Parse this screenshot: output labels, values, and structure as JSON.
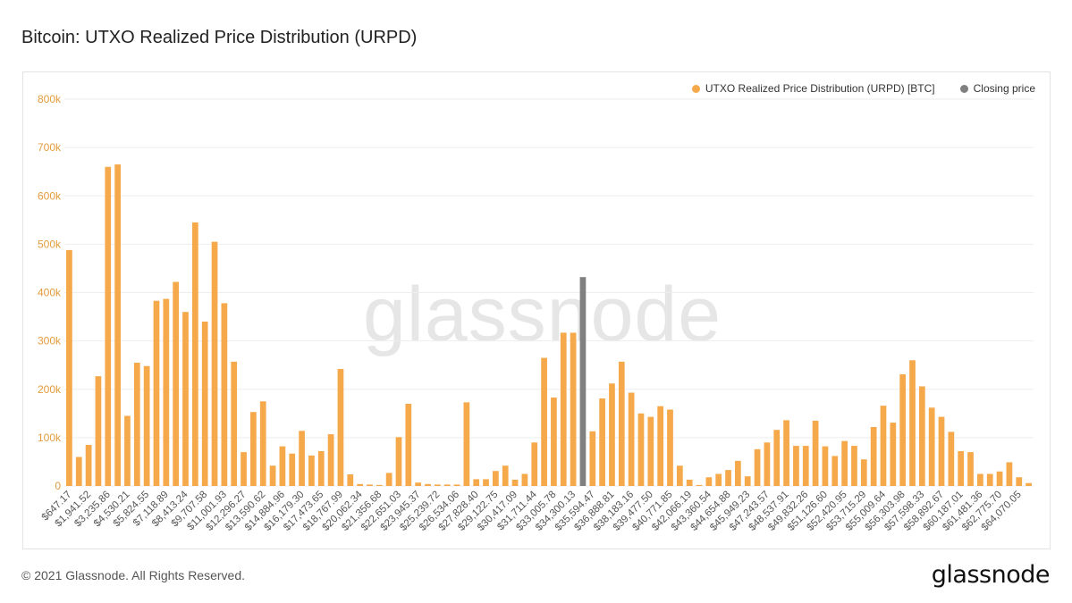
{
  "title": "Bitcoin: UTXO Realized Price Distribution (URPD)",
  "watermark": "glassnode",
  "footer": "© 2021 Glassnode. All Rights Reserved.",
  "brand": "glassnode",
  "colors": {
    "bar": "#f5a94a",
    "closing": "#808080",
    "axis_text": "#e49c3d",
    "grid": "#eeeeee"
  },
  "chart_data": {
    "type": "bar",
    "legend": {
      "placement": "top-right",
      "items": [
        {
          "name": "UTXO Realized Price Distribution (URPD) [BTC]",
          "color": "#f5a94a"
        },
        {
          "name": "Closing price",
          "color": "#808080"
        }
      ]
    },
    "ylim": [
      0,
      800000
    ],
    "yticks": [
      "0",
      "100k",
      "200k",
      "300k",
      "400k",
      "500k",
      "600k",
      "700k",
      "800k"
    ],
    "grid": true,
    "xtick_labels": [
      "$647.17",
      "$1,941.52",
      "$3,235.86",
      "$4,530.21",
      "$5,824.55",
      "$7,118.89",
      "$8,413.24",
      "$9,707.58",
      "$11,001.93",
      "$12,296.27",
      "$13,590.62",
      "$14,884.96",
      "$16,179.30",
      "$17,473.65",
      "$18,767.99",
      "$20,062.34",
      "$21,356.68",
      "$22,651.03",
      "$23,945.37",
      "$25,239.72",
      "$26,534.06",
      "$27,828.40",
      "$29,122.75",
      "$30,417.09",
      "$31,711.44",
      "$33,005.78",
      "$34,300.13",
      "$35,594.47",
      "$36,888.81",
      "$38,183.16",
      "$39,477.50",
      "$40,771.85",
      "$42,066.19",
      "$43,360.54",
      "$44,654.88",
      "$45,949.23",
      "$47,243.57",
      "$48,537.91",
      "$49,832.26",
      "$51,126.60",
      "$52,420.95",
      "$53,715.29",
      "$55,009.64",
      "$56,303.98",
      "$57,598.33",
      "$58,892.67",
      "$60,187.01",
      "$61,481.36",
      "$62,775.70",
      "$64,070.05"
    ],
    "x_start": 647.17,
    "x_step": 647.17,
    "values": [
      488000,
      60000,
      85000,
      227000,
      660000,
      665000,
      145000,
      255000,
      248000,
      383000,
      387000,
      422000,
      360000,
      545000,
      340000,
      505000,
      378000,
      257000,
      70000,
      153000,
      175000,
      42000,
      82000,
      67000,
      114000,
      63000,
      72000,
      107000,
      242000,
      24000,
      4000,
      3000,
      2000,
      27000,
      101000,
      170000,
      7000,
      4000,
      3000,
      3000,
      3000,
      173000,
      14000,
      14000,
      31000,
      42000,
      13000,
      25000,
      90000,
      265000,
      183000,
      317000,
      317000,
      5000,
      113000,
      181000,
      212000,
      257000,
      193000,
      150000,
      143000,
      165000,
      158000,
      42000,
      13000,
      2000,
      18000,
      25000,
      33000,
      52000,
      20000,
      76000,
      90000,
      116000,
      136000,
      83000,
      83000,
      135000,
      82000,
      62000,
      93000,
      83000,
      55000,
      122000,
      166000,
      131000,
      231000,
      260000,
      206000,
      162000,
      143000,
      112000,
      72000,
      70000,
      25000,
      25000,
      30000,
      49000,
      18000,
      6000
    ],
    "closing_price": {
      "index": 53,
      "value": 432000
    }
  }
}
